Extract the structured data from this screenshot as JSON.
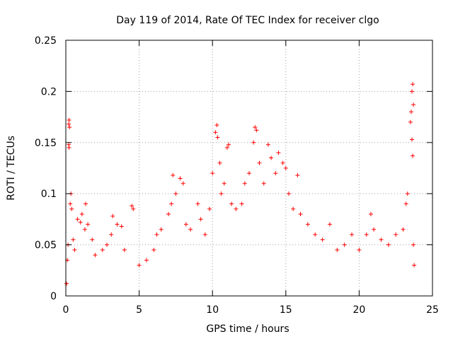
{
  "chart_data": {
    "type": "scatter",
    "title": "Day 119 of 2014, Rate Of TEC Index for receiver clgo",
    "xlabel": "GPS time / hours",
    "ylabel": "ROTI / TECUs",
    "xlim": [
      0,
      25
    ],
    "ylim": [
      0,
      0.25
    ],
    "xticks": [
      0,
      5,
      10,
      15,
      20,
      25
    ],
    "xtick_labels": [
      "0",
      "5",
      "10",
      "15",
      "20",
      "25"
    ],
    "yticks": [
      0,
      0.05,
      0.1,
      0.15,
      0.2,
      0.25
    ],
    "ytick_labels": [
      "0",
      "0.05",
      "0.1",
      "0.15",
      "0.2",
      "0.25"
    ],
    "grid": true,
    "marker": "+",
    "series": [
      {
        "name": "ROTI",
        "color": "#ff0000",
        "points": [
          [
            0.05,
            0.012
          ],
          [
            0.1,
            0.035
          ],
          [
            0.15,
            0.05
          ],
          [
            0.2,
            0.168
          ],
          [
            0.22,
            0.172
          ],
          [
            0.25,
            0.165
          ],
          [
            0.2,
            0.148
          ],
          [
            0.22,
            0.145
          ],
          [
            0.3,
            0.09
          ],
          [
            0.35,
            0.1
          ],
          [
            0.4,
            0.085
          ],
          [
            0.5,
            0.055
          ],
          [
            0.6,
            0.045
          ],
          [
            0.8,
            0.075
          ],
          [
            1.0,
            0.072
          ],
          [
            1.1,
            0.08
          ],
          [
            1.3,
            0.065
          ],
          [
            1.35,
            0.09
          ],
          [
            1.5,
            0.07
          ],
          [
            1.8,
            0.055
          ],
          [
            2.0,
            0.04
          ],
          [
            2.5,
            0.045
          ],
          [
            2.8,
            0.05
          ],
          [
            3.1,
            0.06
          ],
          [
            3.2,
            0.078
          ],
          [
            3.5,
            0.07
          ],
          [
            3.8,
            0.068
          ],
          [
            4.0,
            0.045
          ],
          [
            4.5,
            0.088
          ],
          [
            4.6,
            0.085
          ],
          [
            5.0,
            0.03
          ],
          [
            5.5,
            0.035
          ],
          [
            6.0,
            0.045
          ],
          [
            6.2,
            0.06
          ],
          [
            6.5,
            0.065
          ],
          [
            7.0,
            0.08
          ],
          [
            7.2,
            0.09
          ],
          [
            7.3,
            0.118
          ],
          [
            7.5,
            0.1
          ],
          [
            7.8,
            0.115
          ],
          [
            8.0,
            0.11
          ],
          [
            8.2,
            0.07
          ],
          [
            8.5,
            0.065
          ],
          [
            9.0,
            0.09
          ],
          [
            9.2,
            0.075
          ],
          [
            9.5,
            0.06
          ],
          [
            9.8,
            0.085
          ],
          [
            10.0,
            0.12
          ],
          [
            10.2,
            0.16
          ],
          [
            10.3,
            0.167
          ],
          [
            10.35,
            0.155
          ],
          [
            10.5,
            0.13
          ],
          [
            10.6,
            0.1
          ],
          [
            10.8,
            0.11
          ],
          [
            11.0,
            0.145
          ],
          [
            11.1,
            0.148
          ],
          [
            11.3,
            0.09
          ],
          [
            11.6,
            0.085
          ],
          [
            12.0,
            0.09
          ],
          [
            12.2,
            0.11
          ],
          [
            12.5,
            0.12
          ],
          [
            12.8,
            0.15
          ],
          [
            12.9,
            0.165
          ],
          [
            13.0,
            0.162
          ],
          [
            13.2,
            0.13
          ],
          [
            13.5,
            0.11
          ],
          [
            13.8,
            0.148
          ],
          [
            14.0,
            0.135
          ],
          [
            14.3,
            0.12
          ],
          [
            14.5,
            0.14
          ],
          [
            14.8,
            0.13
          ],
          [
            15.0,
            0.125
          ],
          [
            15.2,
            0.1
          ],
          [
            15.5,
            0.085
          ],
          [
            15.8,
            0.118
          ],
          [
            16.0,
            0.08
          ],
          [
            16.5,
            0.07
          ],
          [
            17.0,
            0.06
          ],
          [
            17.5,
            0.055
          ],
          [
            18.0,
            0.07
          ],
          [
            18.5,
            0.045
          ],
          [
            19.0,
            0.05
          ],
          [
            19.5,
            0.06
          ],
          [
            20.0,
            0.045
          ],
          [
            20.5,
            0.06
          ],
          [
            20.8,
            0.08
          ],
          [
            21.0,
            0.065
          ],
          [
            21.5,
            0.055
          ],
          [
            22.0,
            0.05
          ],
          [
            22.5,
            0.06
          ],
          [
            23.0,
            0.065
          ],
          [
            23.2,
            0.09
          ],
          [
            23.3,
            0.1
          ],
          [
            23.5,
            0.17
          ],
          [
            23.55,
            0.18
          ],
          [
            23.6,
            0.2
          ],
          [
            23.65,
            0.207
          ],
          [
            23.7,
            0.187
          ],
          [
            23.6,
            0.153
          ],
          [
            23.65,
            0.137
          ],
          [
            23.7,
            0.05
          ],
          [
            23.75,
            0.03
          ]
        ]
      }
    ]
  }
}
